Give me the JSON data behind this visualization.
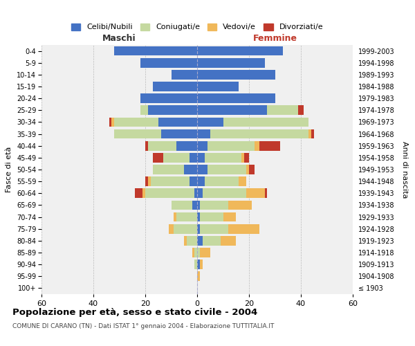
{
  "age_groups": [
    "100+",
    "95-99",
    "90-94",
    "85-89",
    "80-84",
    "75-79",
    "70-74",
    "65-69",
    "60-64",
    "55-59",
    "50-54",
    "45-49",
    "40-44",
    "35-39",
    "30-34",
    "25-29",
    "20-24",
    "15-19",
    "10-14",
    "5-9",
    "0-4"
  ],
  "birth_years": [
    "≤ 1903",
    "1904-1908",
    "1909-1913",
    "1914-1918",
    "1919-1923",
    "1924-1928",
    "1929-1933",
    "1934-1938",
    "1939-1943",
    "1944-1948",
    "1949-1953",
    "1954-1958",
    "1959-1963",
    "1964-1968",
    "1969-1973",
    "1974-1978",
    "1979-1983",
    "1984-1988",
    "1989-1993",
    "1994-1998",
    "1999-2003"
  ],
  "male": {
    "celibi": [
      0,
      0,
      0,
      0,
      0,
      0,
      0,
      2,
      1,
      3,
      5,
      3,
      8,
      14,
      15,
      19,
      22,
      17,
      10,
      22,
      32
    ],
    "coniugati": [
      0,
      0,
      1,
      1,
      4,
      9,
      8,
      8,
      19,
      15,
      12,
      10,
      11,
      18,
      17,
      3,
      0,
      0,
      0,
      0,
      0
    ],
    "vedovi": [
      0,
      0,
      0,
      1,
      1,
      2,
      1,
      0,
      1,
      1,
      0,
      0,
      0,
      0,
      1,
      0,
      0,
      0,
      0,
      0,
      0
    ],
    "divorziati": [
      0,
      0,
      0,
      0,
      0,
      0,
      0,
      0,
      3,
      1,
      0,
      4,
      1,
      0,
      1,
      0,
      0,
      0,
      0,
      0,
      0
    ]
  },
  "female": {
    "nubili": [
      0,
      0,
      1,
      0,
      2,
      1,
      1,
      1,
      2,
      3,
      4,
      3,
      4,
      5,
      10,
      27,
      30,
      16,
      30,
      26,
      33
    ],
    "coniugate": [
      0,
      0,
      0,
      1,
      7,
      11,
      9,
      11,
      17,
      13,
      15,
      14,
      18,
      38,
      33,
      12,
      0,
      0,
      0,
      0,
      0
    ],
    "vedove": [
      0,
      1,
      1,
      4,
      6,
      12,
      5,
      9,
      7,
      3,
      1,
      1,
      2,
      1,
      0,
      0,
      0,
      0,
      0,
      0,
      0
    ],
    "divorziate": [
      0,
      0,
      0,
      0,
      0,
      0,
      0,
      0,
      1,
      0,
      2,
      2,
      8,
      1,
      0,
      2,
      0,
      0,
      0,
      0,
      0
    ]
  },
  "colors": {
    "celibi": "#4472c4",
    "coniugati": "#c5d9a0",
    "vedovi": "#f0b85a",
    "divorziati": "#c0392b"
  },
  "title": "Popolazione per età, sesso e stato civile - 2004",
  "subtitle": "COMUNE DI CARANO (TN) - Dati ISTAT 1° gennaio 2004 - Elaborazione TUTTITALIA.IT",
  "xlabel_left": "Maschi",
  "xlabel_right": "Femmine",
  "ylabel_left": "Fasce di età",
  "ylabel_right": "Anni di nascita",
  "xlim": 60,
  "background_color": "#ffffff",
  "grid_color": "#cccccc",
  "legend_labels": [
    "Celibi/Nubili",
    "Coniugati/e",
    "Vedovi/e",
    "Divorziati/e"
  ]
}
